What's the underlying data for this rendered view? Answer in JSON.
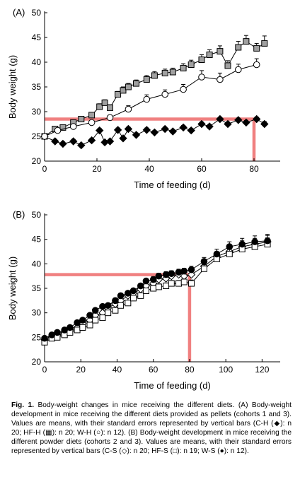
{
  "chart_data": [
    {
      "type": "line",
      "panel_label": "(A)",
      "title": "",
      "xlabel": "Time of feeding (d)",
      "ylabel": "Body weight (g)",
      "xlim": [
        0,
        90
      ],
      "ylim": [
        20,
        50
      ],
      "xticks": [
        0,
        20,
        40,
        60,
        80
      ],
      "yticks": [
        20,
        25,
        30,
        35,
        40,
        45,
        50
      ],
      "series": [
        {
          "name": "C-H",
          "marker": "diamond-filled",
          "x": [
            0,
            4,
            7,
            11,
            14,
            18,
            21,
            23,
            25,
            28,
            30,
            32,
            35,
            39,
            42,
            46,
            49,
            53,
            56,
            60,
            63,
            67,
            70,
            74,
            77,
            81,
            84
          ],
          "y": [
            25.0,
            24.0,
            23.5,
            24.0,
            23.2,
            24.2,
            26.2,
            23.8,
            24.0,
            26.3,
            24.6,
            26.5,
            25.3,
            26.3,
            25.8,
            26.5,
            26.0,
            26.8,
            26.2,
            27.5,
            27.0,
            28.5,
            27.5,
            28.3,
            27.8,
            28.5,
            27.5
          ],
          "err": [
            0.4,
            0.4,
            0.4,
            0.4,
            0.4,
            0.4,
            0.4,
            0.4,
            0.4,
            0.4,
            0.4,
            0.4,
            0.4,
            0.4,
            0.4,
            0.4,
            0.4,
            0.4,
            0.4,
            0.4,
            0.4,
            0.4,
            0.4,
            0.4,
            0.4,
            0.4,
            0.5
          ]
        },
        {
          "name": "HF-H",
          "marker": "square-grey",
          "x": [
            0,
            4,
            7,
            11,
            14,
            18,
            21,
            23,
            25,
            28,
            30,
            32,
            35,
            39,
            42,
            46,
            49,
            53,
            56,
            60,
            63,
            67,
            70,
            74,
            77,
            81,
            84
          ],
          "y": [
            25.0,
            26.5,
            26.8,
            27.8,
            28.5,
            29.3,
            31.0,
            31.8,
            30.8,
            33.5,
            34.3,
            35.0,
            35.7,
            36.5,
            37.3,
            37.8,
            38.0,
            38.8,
            39.5,
            40.5,
            41.5,
            42.2,
            39.3,
            43.0,
            44.2,
            42.8,
            43.8
          ],
          "err": [
            0.5,
            0.5,
            0.5,
            0.5,
            0.5,
            0.5,
            0.6,
            0.6,
            0.6,
            0.6,
            0.7,
            0.7,
            0.7,
            0.8,
            0.8,
            0.8,
            0.8,
            0.9,
            0.9,
            1.0,
            1.0,
            1.1,
            1.0,
            1.2,
            1.2,
            1.0,
            1.5
          ]
        },
        {
          "name": "W-H",
          "marker": "circle-open",
          "x": [
            0,
            5,
            11,
            18,
            25,
            32,
            39,
            46,
            53,
            60,
            67,
            74,
            81
          ],
          "y": [
            25.0,
            26.2,
            27.0,
            27.8,
            28.8,
            30.5,
            32.5,
            33.5,
            34.5,
            37.0,
            36.5,
            38.5,
            39.5
          ],
          "err": [
            0.4,
            0.4,
            0.4,
            0.4,
            0.5,
            0.7,
            0.9,
            0.9,
            1.0,
            1.3,
            1.3,
            1.1,
            1.2
          ]
        }
      ],
      "highlight": {
        "x": 80,
        "y": 28.5
      }
    },
    {
      "type": "line",
      "panel_label": "(B)",
      "title": "",
      "xlabel": "Time of feeding (d)",
      "ylabel": "Body weight (g)",
      "xlim": [
        0,
        130
      ],
      "ylim": [
        20,
        50
      ],
      "xticks": [
        0,
        20,
        40,
        60,
        80,
        100,
        120
      ],
      "yticks": [
        20,
        25,
        30,
        35,
        40,
        45,
        50
      ],
      "series": [
        {
          "name": "C-S",
          "marker": "diamond-open",
          "x": [
            0,
            4,
            7,
            11,
            14,
            18,
            21,
            25,
            28,
            32,
            35,
            39,
            42,
            46,
            49,
            53,
            56,
            60,
            63,
            67,
            70,
            74,
            77,
            81,
            88,
            95,
            102,
            109,
            116,
            123
          ],
          "y": [
            24.5,
            25.0,
            25.5,
            26.0,
            26.5,
            27.0,
            27.8,
            28.5,
            29.5,
            30.0,
            31.0,
            31.8,
            32.5,
            33.5,
            34.0,
            34.8,
            35.5,
            36.0,
            36.8,
            37.0,
            37.5,
            37.8,
            37.5,
            37.8,
            39.5,
            41.5,
            42.5,
            43.5,
            44.0,
            44.5
          ],
          "err": [
            0.3,
            0.3,
            0.3,
            0.3,
            0.3,
            0.3,
            0.4,
            0.4,
            0.4,
            0.4,
            0.4,
            0.5,
            0.5,
            0.5,
            0.5,
            0.5,
            0.5,
            0.6,
            0.6,
            0.6,
            0.6,
            0.6,
            0.6,
            0.7,
            0.8,
            1.0,
            1.0,
            1.2,
            1.2,
            1.3
          ]
        },
        {
          "name": "HF-S",
          "marker": "square-open",
          "x": [
            0,
            4,
            7,
            11,
            14,
            18,
            21,
            25,
            28,
            32,
            35,
            39,
            42,
            46,
            49,
            53,
            56,
            60,
            63,
            67,
            70,
            74,
            77,
            81,
            88,
            95,
            102,
            109,
            116,
            123
          ],
          "y": [
            24.0,
            24.8,
            25.0,
            25.5,
            26.0,
            26.5,
            27.0,
            27.5,
            28.5,
            29.0,
            30.0,
            30.5,
            31.5,
            32.0,
            33.0,
            33.5,
            34.5,
            35.0,
            35.3,
            35.5,
            36.0,
            36.0,
            36.3,
            36.0,
            39.0,
            41.0,
            42.0,
            43.0,
            43.5,
            44.0
          ],
          "err": [
            0.3,
            0.3,
            0.3,
            0.3,
            0.3,
            0.3,
            0.4,
            0.4,
            0.4,
            0.4,
            0.4,
            0.5,
            0.5,
            0.5,
            0.5,
            0.5,
            0.5,
            0.6,
            0.6,
            0.6,
            0.6,
            0.6,
            0.6,
            0.7,
            0.8,
            1.0,
            1.0,
            1.2,
            1.2,
            1.3
          ]
        },
        {
          "name": "W-S",
          "marker": "circle-filled",
          "x": [
            0,
            4,
            7,
            11,
            14,
            18,
            21,
            25,
            28,
            32,
            35,
            39,
            42,
            46,
            49,
            53,
            56,
            60,
            63,
            67,
            70,
            74,
            77,
            81,
            88,
            95,
            102,
            109,
            116,
            123
          ],
          "y": [
            24.8,
            25.5,
            26.0,
            26.5,
            27.0,
            28.0,
            28.5,
            29.5,
            30.5,
            31.3,
            31.5,
            32.5,
            33.5,
            34.0,
            34.5,
            35.5,
            36.5,
            36.8,
            37.5,
            37.8,
            38.0,
            38.3,
            38.5,
            38.8,
            40.5,
            42.0,
            43.5,
            44.0,
            44.5,
            44.7
          ],
          "err": [
            0.3,
            0.3,
            0.3,
            0.3,
            0.3,
            0.3,
            0.4,
            0.4,
            0.4,
            0.4,
            0.4,
            0.5,
            0.5,
            0.5,
            0.5,
            0.5,
            0.5,
            0.6,
            0.6,
            0.6,
            0.6,
            0.6,
            0.6,
            0.7,
            0.8,
            1.0,
            1.0,
            1.2,
            1.2,
            1.3
          ]
        }
      ],
      "highlight": {
        "x": 80,
        "y": 37.8
      }
    }
  ],
  "caption": {
    "label": "Fig. 1.",
    "text": "Body-weight changes in mice receiving the different diets. (A) Body-weight development in mice receiving the different diets provided as pellets (cohorts 1 and 3). Values are means, with their standard errors represented by vertical bars (C-H (◆): n 20; HF-H (▦): n 20; W-H (○): n 12). (B) Body-weight development in mice receiving the different powder diets (cohorts 2 and 3). Values are means, with their standard errors represented by vertical bars (C-S (◇): n 20; HF-S (□): n 19; W-S (●): n 12)."
  },
  "colors": {
    "highlight": "#f08080",
    "hf_grey": "#a0a0a0",
    "ink": "#000000"
  }
}
